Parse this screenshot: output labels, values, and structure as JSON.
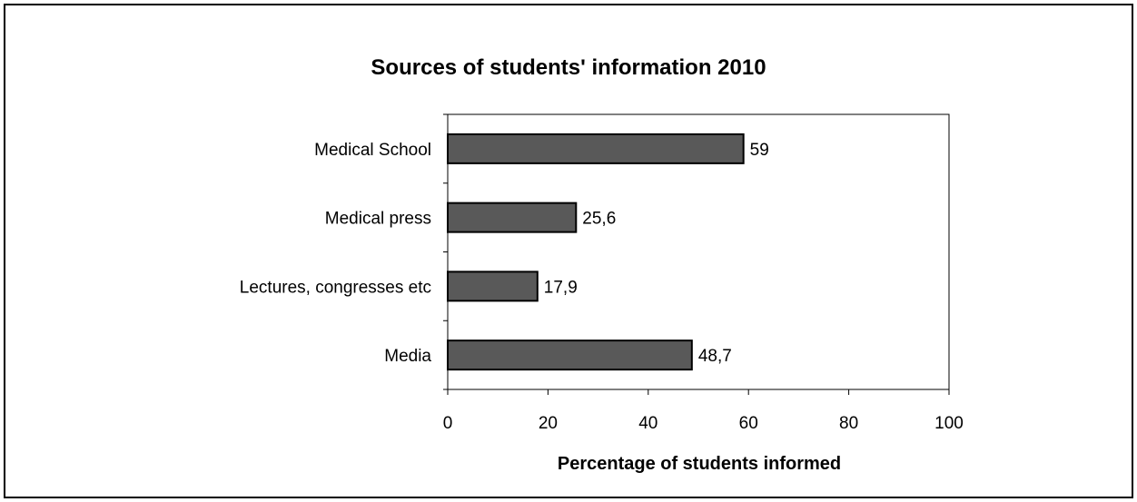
{
  "chart_data": {
    "type": "bar",
    "orientation": "horizontal",
    "title": "Sources of students' information 2010",
    "xlabel": "Percentage of students informed",
    "ylabel": "",
    "categories": [
      "Medical School",
      "Medical press",
      "Lectures, congresses etc",
      "Media"
    ],
    "values": [
      59,
      25.6,
      17.9,
      48.7
    ],
    "value_labels": [
      "59",
      "25,6",
      "17,9",
      "48,7"
    ],
    "xlim": [
      0,
      100
    ],
    "xticks": [
      "0",
      "20",
      "40",
      "60",
      "80",
      "100"
    ],
    "grid": false,
    "legend": "none",
    "bar_color": "#595959",
    "bar_edge_color": "#000000"
  }
}
